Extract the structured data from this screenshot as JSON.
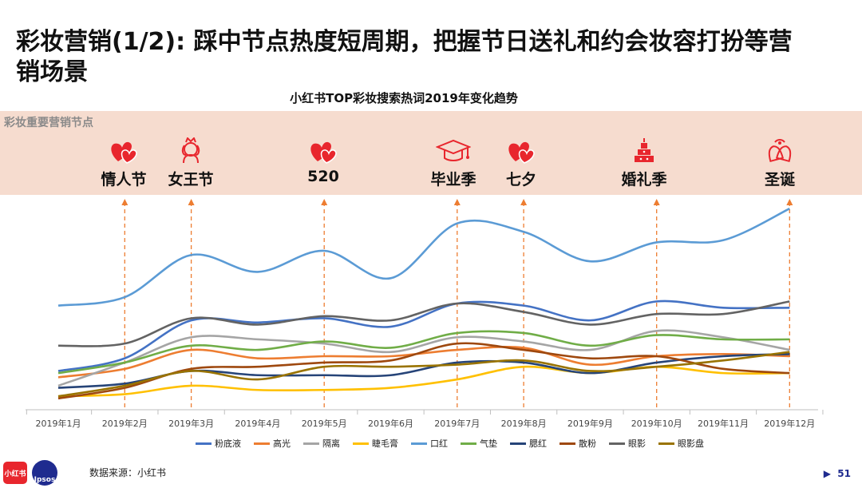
{
  "slide_title": "彩妆营销(1/2): 踩中节点热度短周期，把握节日送礼和约会妆容打扮等营销场景",
  "band_label": "彩妆重要营销节点",
  "events": [
    {
      "label": "情人节",
      "icon": "hearts-icon",
      "month_index": 1
    },
    {
      "label": "女王节",
      "icon": "queen-icon",
      "month_index": 2
    },
    {
      "label": "520",
      "icon": "hearts-icon",
      "month_index": 4
    },
    {
      "label": "毕业季",
      "icon": "graduation-cap-icon",
      "month_index": 6
    },
    {
      "label": "七夕",
      "icon": "hearts-icon",
      "month_index": 7
    },
    {
      "label": "婚礼季",
      "icon": "wedding-cake-icon",
      "month_index": 9
    },
    {
      "label": "圣诞",
      "icon": "bells-icon",
      "month_index": 11
    }
  ],
  "footer": {
    "source": "数据来源：小红书",
    "page_number": "51",
    "logo_xhs": "小红书",
    "logo_ipsos": "Ipsos"
  },
  "chart_data": {
    "type": "line",
    "title": "小红书TOP彩妆搜索热词2019年变化趋势",
    "categories": [
      "2019年1月",
      "2019年2月",
      "2019年3月",
      "2019年4月",
      "2019年5月",
      "2019年6月",
      "2019年7月",
      "2019年8月",
      "2019年9月",
      "2019年10月",
      "2019年11月",
      "2019年12月"
    ],
    "ylim": [
      0,
      100
    ],
    "series": [
      {
        "name": "粉底液",
        "color": "#4472c4",
        "values": [
          18,
          24,
          42,
          41,
          43,
          39,
          50,
          49,
          42,
          51,
          48,
          48
        ]
      },
      {
        "name": "高光",
        "color": "#ed7d31",
        "values": [
          15,
          19,
          28,
          24,
          25,
          25,
          28,
          29,
          21,
          25,
          26,
          25
        ]
      },
      {
        "name": "隔离",
        "color": "#a5a5a5",
        "values": [
          11,
          22,
          34,
          33,
          31,
          27,
          34,
          32,
          28,
          37,
          34,
          28
        ]
      },
      {
        "name": "睫毛膏",
        "color": "#ffc000",
        "values": [
          6,
          7,
          11,
          9,
          9,
          10,
          14,
          20,
          17,
          20,
          17,
          17
        ]
      },
      {
        "name": "口红",
        "color": "#5b9bd5",
        "values": [
          49,
          53,
          73,
          65,
          75,
          62,
          88,
          84,
          70,
          79,
          80,
          95
        ]
      },
      {
        "name": "气垫",
        "color": "#70ad47",
        "values": [
          17,
          22,
          30,
          28,
          32,
          29,
          36,
          36,
          30,
          35,
          33,
          33
        ]
      },
      {
        "name": "腮红",
        "color": "#264478",
        "values": [
          10,
          12,
          18,
          16,
          16,
          16,
          22,
          22,
          17,
          22,
          25,
          26
        ]
      },
      {
        "name": "散粉",
        "color": "#9e480e",
        "values": [
          5,
          10,
          19,
          20,
          22,
          23,
          31,
          28,
          24,
          25,
          19,
          17
        ]
      },
      {
        "name": "眼影",
        "color": "#636363",
        "values": [
          30,
          31,
          43,
          40,
          44,
          42,
          50,
          46,
          40,
          45,
          45,
          51
        ]
      },
      {
        "name": "眼影盘",
        "color": "#997300",
        "values": [
          6,
          11,
          18,
          14,
          20,
          20,
          21,
          23,
          18,
          20,
          23,
          27
        ]
      }
    ]
  }
}
